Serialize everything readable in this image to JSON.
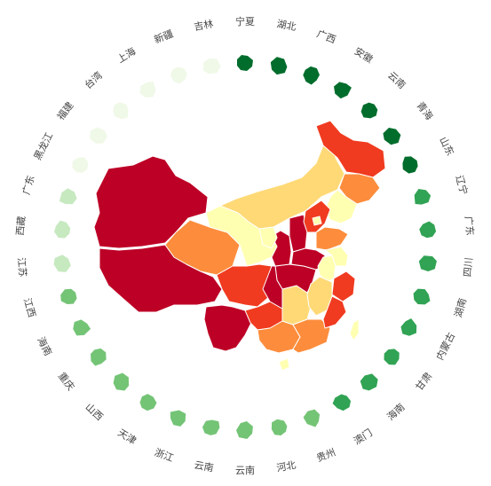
{
  "chart_data": {
    "type": "choropleth",
    "title": "",
    "colors": {
      "map_scale": [
        "#ffffb2",
        "#fed976",
        "#fd8d3c",
        "#f03b20",
        "#bd0026"
      ],
      "ring_scale": [
        "#f0f9e8",
        "#c7e9c0",
        "#74c476",
        "#31a354",
        "#006d2c"
      ]
    },
    "ring": [
      {
        "name": "宁夏",
        "level": 5
      },
      {
        "name": "湖北",
        "level": 5
      },
      {
        "name": "广西",
        "level": 5
      },
      {
        "name": "安徽",
        "level": 5
      },
      {
        "name": "云南",
        "level": 5
      },
      {
        "name": "青海",
        "level": 5
      },
      {
        "name": "山东",
        "level": 5
      },
      {
        "name": "辽宁",
        "level": 4
      },
      {
        "name": "广东",
        "level": 4
      },
      {
        "name": "四川",
        "level": 4
      },
      {
        "name": "湖南",
        "level": 4
      },
      {
        "name": "内蒙古",
        "level": 4
      },
      {
        "name": "甘肃",
        "level": 4
      },
      {
        "name": "海南",
        "level": 4
      },
      {
        "name": "澳门",
        "level": 4
      },
      {
        "name": "贵州",
        "level": 3
      },
      {
        "name": "河北",
        "level": 3
      },
      {
        "name": "云南",
        "level": 3
      },
      {
        "name": "云南",
        "level": 3
      },
      {
        "name": "浙江",
        "level": 3
      },
      {
        "name": "天津",
        "level": 3
      },
      {
        "name": "山西",
        "level": 3
      },
      {
        "name": "重庆",
        "level": 3
      },
      {
        "name": "海南",
        "level": 3
      },
      {
        "name": "江西",
        "level": 3
      },
      {
        "name": "江苏",
        "level": 2
      },
      {
        "name": "西藏",
        "level": 2
      },
      {
        "name": "广东",
        "level": 2
      },
      {
        "name": "黑龙江",
        "level": 1
      },
      {
        "name": "福建",
        "level": 1
      },
      {
        "name": "台湾",
        "level": 1
      },
      {
        "name": "上海",
        "level": 1
      },
      {
        "name": "新疆",
        "level": 1
      },
      {
        "name": "吉林",
        "level": 1
      }
    ],
    "map_regions": [
      {
        "region": "xinjiang",
        "level": 5
      },
      {
        "region": "tibet",
        "level": 5
      },
      {
        "region": "qinghai",
        "level": 3
      },
      {
        "region": "gansu",
        "level": 1
      },
      {
        "region": "inner_mongolia",
        "level": 2
      },
      {
        "region": "heilongjiang",
        "level": 4
      },
      {
        "region": "jilin",
        "level": 3
      },
      {
        "region": "liaoning",
        "level": 1
      },
      {
        "region": "sichuan",
        "level": 4
      },
      {
        "region": "yunnan",
        "level": 5
      },
      {
        "region": "guizhou",
        "level": 4
      },
      {
        "region": "guangxi",
        "level": 3
      },
      {
        "region": "guangdong",
        "level": 3
      },
      {
        "region": "hunan",
        "level": 2
      },
      {
        "region": "hubei",
        "level": 5
      },
      {
        "region": "chongqing",
        "level": 5
      },
      {
        "region": "shaanxi",
        "level": 5
      },
      {
        "region": "ningxia",
        "level": 1
      },
      {
        "region": "shanxi",
        "level": 5
      },
      {
        "region": "hebei",
        "level": 4
      },
      {
        "region": "beijing",
        "level": 1
      },
      {
        "region": "shandong",
        "level": 3
      },
      {
        "region": "henan",
        "level": 5
      },
      {
        "region": "anhui",
        "level": 1
      },
      {
        "region": "jiangsu",
        "level": 1
      },
      {
        "region": "zhejiang",
        "level": 4
      },
      {
        "region": "jiangxi",
        "level": 2
      },
      {
        "region": "fujian",
        "level": 4
      },
      {
        "region": "hainan",
        "level": 1
      },
      {
        "region": "taiwan",
        "level": 1
      }
    ]
  }
}
